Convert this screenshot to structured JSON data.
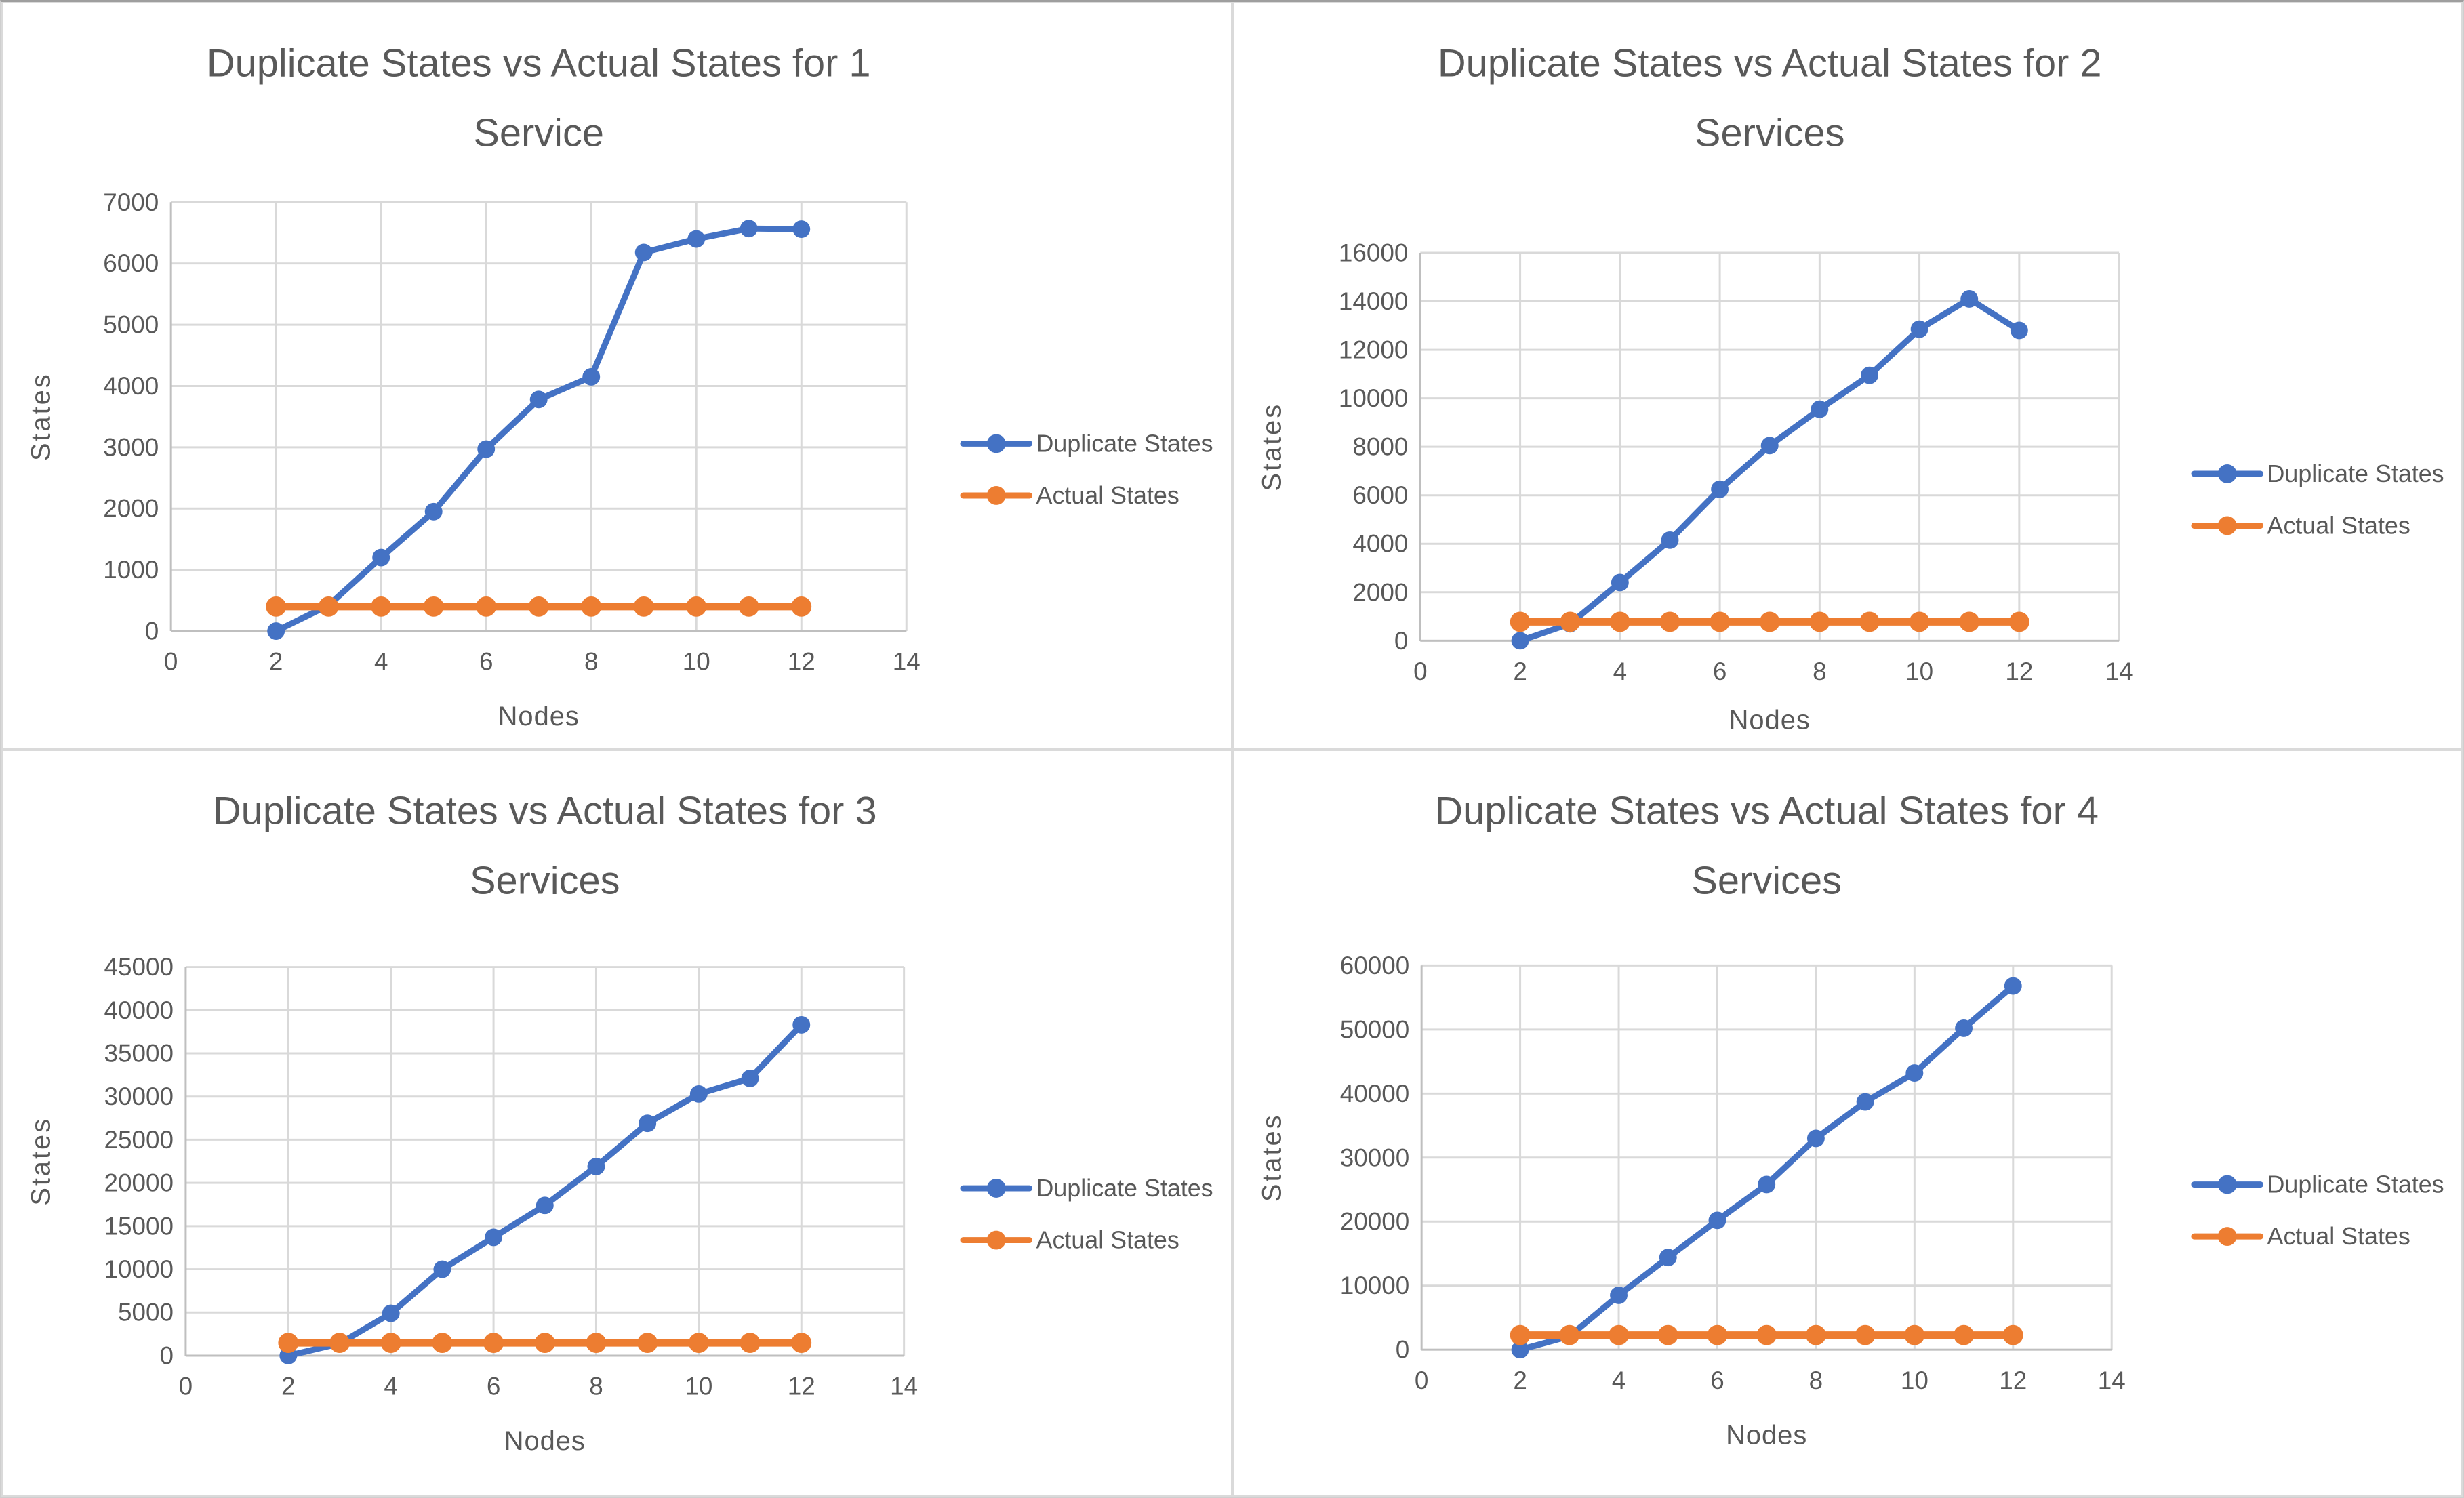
{
  "page": {
    "background": "#FFFFFF"
  },
  "colors": {
    "duplicate_series": "#4472C4",
    "actual_series": "#ED7D31",
    "text": "#595959",
    "gridline": "#D9D9D9",
    "axis_line": "#BFBFBF"
  },
  "legend": {
    "duplicate_label": "Duplicate States",
    "actual_label": "Actual States"
  },
  "axis_labels": {
    "x": "Nodes",
    "y": "States"
  },
  "chart_data": [
    {
      "type": "line",
      "title": "Duplicate States vs Actual States for 1 Service",
      "title_lines": [
        "Duplicate States vs Actual States for 1",
        "Service"
      ],
      "xlabel": "Nodes",
      "ylabel": "States",
      "x": [
        2,
        3,
        4,
        5,
        6,
        7,
        8,
        9,
        10,
        11,
        12
      ],
      "series": [
        {
          "name": "Duplicate States",
          "values": [
            0,
            420,
            1200,
            1950,
            2970,
            3780,
            4150,
            6180,
            6400,
            6570,
            6560
          ]
        },
        {
          "name": "Actual States",
          "values": [
            400,
            400,
            400,
            400,
            400,
            400,
            400,
            400,
            400,
            400,
            400
          ]
        }
      ],
      "xlim": [
        0,
        14
      ],
      "xticks": [
        0,
        2,
        4,
        6,
        8,
        10,
        12,
        14
      ],
      "ylim": [
        0,
        7000
      ],
      "yticks": [
        0,
        1000,
        2000,
        3000,
        4000,
        5000,
        6000,
        7000
      ],
      "grid": true,
      "legend_position": "right"
    },
    {
      "type": "line",
      "title": "Duplicate States vs Actual States for 2 Services",
      "title_lines": [
        "Duplicate States vs Actual States for 2",
        "Services"
      ],
      "xlabel": "Nodes",
      "ylabel": "States",
      "x": [
        2,
        3,
        4,
        5,
        6,
        7,
        8,
        9,
        10,
        11,
        12
      ],
      "series": [
        {
          "name": "Duplicate States",
          "values": [
            0,
            700,
            2400,
            4150,
            6250,
            8050,
            9550,
            10950,
            12850,
            14100,
            12800
          ]
        },
        {
          "name": "Actual States",
          "values": [
            780,
            780,
            780,
            780,
            780,
            780,
            780,
            780,
            780,
            780,
            780
          ]
        }
      ],
      "xlim": [
        0,
        14
      ],
      "xticks": [
        0,
        2,
        4,
        6,
        8,
        10,
        12,
        14
      ],
      "ylim": [
        0,
        16000
      ],
      "yticks": [
        0,
        2000,
        4000,
        6000,
        8000,
        10000,
        12000,
        14000,
        16000
      ],
      "grid": true,
      "legend_position": "right"
    },
    {
      "type": "line",
      "title": "Duplicate States vs Actual States for 3 Services",
      "title_lines": [
        "Duplicate States vs Actual States for 3",
        "Services"
      ],
      "xlabel": "Nodes",
      "ylabel": "States",
      "x": [
        2,
        3,
        4,
        5,
        6,
        7,
        8,
        9,
        10,
        11,
        12
      ],
      "series": [
        {
          "name": "Duplicate States",
          "values": [
            0,
            1400,
            4900,
            10000,
            13700,
            17400,
            21900,
            26900,
            30300,
            32100,
            38300
          ]
        },
        {
          "name": "Actual States",
          "values": [
            1480,
            1480,
            1480,
            1480,
            1480,
            1480,
            1480,
            1480,
            1480,
            1480,
            1480
          ]
        }
      ],
      "xlim": [
        0,
        14
      ],
      "xticks": [
        0,
        2,
        4,
        6,
        8,
        10,
        12,
        14
      ],
      "ylim": [
        0,
        45000
      ],
      "yticks": [
        0,
        5000,
        10000,
        15000,
        20000,
        25000,
        30000,
        35000,
        40000,
        45000
      ],
      "grid": true,
      "legend_position": "right"
    },
    {
      "type": "line",
      "title": "Duplicate States vs Actual States for 4 Services",
      "title_lines": [
        "Duplicate States vs Actual States for 4",
        "Services"
      ],
      "xlabel": "Nodes",
      "ylabel": "States",
      "x": [
        2,
        3,
        4,
        5,
        6,
        7,
        8,
        9,
        10,
        11,
        12
      ],
      "series": [
        {
          "name": "Duplicate States",
          "values": [
            0,
            2100,
            8500,
            14400,
            20200,
            25800,
            33000,
            38700,
            43200,
            50200,
            56800
          ]
        },
        {
          "name": "Actual States",
          "values": [
            2280,
            2280,
            2280,
            2280,
            2280,
            2280,
            2280,
            2280,
            2280,
            2280,
            2280
          ]
        }
      ],
      "xlim": [
        0,
        14
      ],
      "xticks": [
        0,
        2,
        4,
        6,
        8,
        10,
        12,
        14
      ],
      "ylim": [
        0,
        60000
      ],
      "yticks": [
        0,
        10000,
        20000,
        30000,
        40000,
        50000,
        60000
      ],
      "grid": true,
      "legend_position": "right"
    }
  ]
}
